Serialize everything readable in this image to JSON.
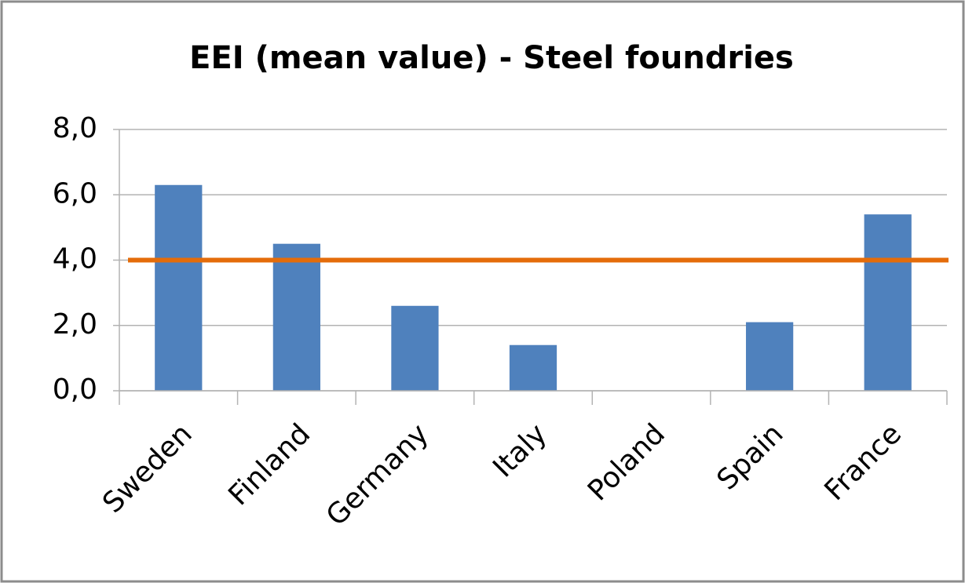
{
  "chart_data": {
    "type": "bar",
    "title": "EEI (mean value) - Steel foundries",
    "categories": [
      "Sweden",
      "Finland",
      "Germany",
      "Italy",
      "Poland",
      "Spain",
      "France"
    ],
    "values": [
      6.3,
      4.5,
      2.6,
      1.4,
      0,
      2.1,
      5.4
    ],
    "color": "#4f81bd",
    "ylim": [
      0,
      8
    ],
    "yticks": [
      {
        "value": 0,
        "label": "0,0"
      },
      {
        "value": 2,
        "label": "2,0"
      },
      {
        "value": 4,
        "label": "4,0"
      },
      {
        "value": 6,
        "label": "6,0"
      },
      {
        "value": 8,
        "label": "8,0"
      }
    ],
    "grid": true,
    "reference_line": {
      "value": 4,
      "color": "#e46c0a"
    }
  }
}
